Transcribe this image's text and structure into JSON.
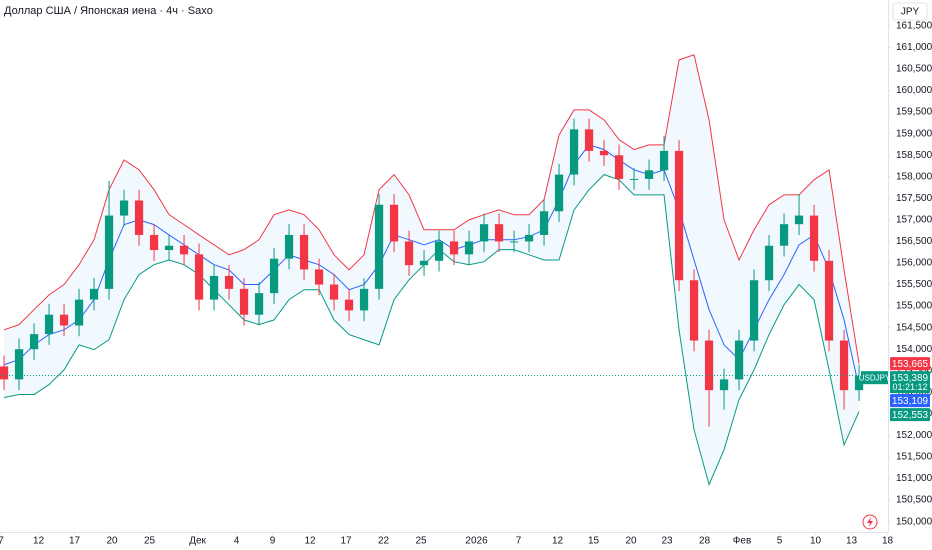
{
  "chart_data": {
    "type": "candlestick",
    "title": "Доллар США / Японская иена · 4ч · Saxo",
    "currency": "JPY",
    "up_color": "#089981",
    "down_color": "#f23645",
    "open": [
      153.6,
      153.3,
      154.0,
      154.35,
      154.8,
      154.55,
      155.15,
      155.4,
      157.1,
      157.45,
      156.65,
      156.3,
      156.4,
      156.2,
      155.15,
      155.7,
      155.4,
      154.8,
      155.3,
      156.1,
      156.65,
      155.85,
      155.5,
      155.15,
      154.9,
      155.4,
      157.35,
      156.5,
      155.95,
      156.05,
      156.5,
      156.2,
      156.5,
      156.9,
      156.5,
      156.5,
      156.65,
      157.2,
      158.05,
      159.1,
      158.6,
      158.5,
      157.95,
      157.95,
      158.15,
      158.6,
      155.6,
      154.2,
      153.05,
      153.3,
      154.2,
      155.6,
      156.4,
      156.9,
      157.1,
      156.05,
      154.2,
      153.05
    ],
    "high": [
      153.85,
      154.25,
      154.6,
      155.05,
      155.05,
      155.4,
      155.65,
      157.9,
      157.7,
      157.7,
      156.9,
      156.65,
      156.65,
      156.45,
      155.95,
      155.95,
      155.65,
      155.55,
      156.35,
      156.9,
      156.9,
      156.1,
      155.75,
      155.4,
      155.65,
      157.6,
      157.6,
      156.75,
      156.3,
      156.75,
      156.75,
      156.75,
      157.15,
      157.15,
      156.75,
      156.9,
      157.45,
      158.3,
      159.35,
      159.35,
      158.85,
      158.75,
      158.2,
      158.4,
      158.95,
      158.85,
      155.85,
      154.45,
      153.55,
      154.45,
      155.85,
      156.65,
      157.15,
      157.6,
      157.35,
      156.3,
      154.45,
      153.64
    ],
    "low": [
      153.05,
      153.05,
      153.75,
      154.1,
      154.3,
      154.3,
      154.9,
      155.15,
      156.85,
      156.4,
      156.05,
      156.05,
      155.95,
      154.9,
      154.9,
      155.15,
      154.55,
      154.55,
      155.05,
      155.85,
      155.6,
      155.25,
      154.9,
      154.65,
      154.65,
      155.15,
      156.25,
      155.7,
      155.7,
      155.8,
      155.95,
      155.95,
      156.25,
      156.25,
      156.25,
      156.25,
      156.4,
      156.95,
      157.8,
      158.35,
      158.25,
      157.7,
      157.7,
      157.7,
      157.9,
      155.35,
      153.95,
      152.2,
      152.6,
      153.05,
      153.95,
      155.35,
      156.15,
      156.65,
      155.8,
      153.95,
      152.6,
      152.8
    ],
    "close": [
      153.3,
      154.0,
      154.35,
      154.8,
      154.55,
      155.15,
      155.4,
      157.1,
      157.45,
      156.65,
      156.3,
      156.4,
      156.2,
      155.15,
      155.7,
      155.4,
      154.8,
      155.3,
      156.1,
      156.65,
      155.85,
      155.5,
      155.15,
      154.9,
      155.4,
      157.35,
      156.5,
      155.95,
      156.05,
      156.5,
      156.2,
      156.5,
      156.9,
      156.5,
      156.5,
      156.65,
      157.2,
      158.05,
      159.1,
      158.6,
      158.5,
      157.95,
      157.95,
      158.15,
      158.6,
      155.6,
      154.2,
      153.05,
      153.3,
      154.2,
      155.6,
      156.4,
      156.9,
      157.1,
      156.05,
      154.2,
      153.05,
      153.389
    ],
    "bands": {
      "upper": {
        "color": "#f23645",
        "values": [
          154.45,
          154.57,
          154.92,
          155.26,
          155.5,
          155.96,
          156.54,
          157.7,
          158.39,
          158.16,
          157.7,
          157.12,
          156.89,
          156.65,
          156.42,
          156.19,
          156.31,
          156.54,
          157.12,
          157.23,
          157.12,
          156.77,
          156.19,
          155.84,
          156.19,
          157.7,
          158.05,
          157.58,
          156.77,
          156.77,
          156.77,
          157.0,
          157.12,
          157.23,
          157.12,
          157.12,
          157.47,
          158.97,
          159.55,
          159.55,
          159.32,
          158.86,
          158.63,
          158.74,
          158.74,
          160.71,
          160.83,
          159.32,
          157.0,
          156.07,
          156.77,
          157.35,
          157.58,
          157.58,
          157.93,
          158.16,
          155.84,
          153.665
        ]
      },
      "middle": {
        "color": "#2962ff",
        "values": [
          153.64,
          153.76,
          154.1,
          154.34,
          154.45,
          154.68,
          155.15,
          156.07,
          156.89,
          157.0,
          156.89,
          156.65,
          156.42,
          156.19,
          155.96,
          155.84,
          155.5,
          155.5,
          155.84,
          156.19,
          156.07,
          155.96,
          155.73,
          155.38,
          155.5,
          155.96,
          156.65,
          156.54,
          156.42,
          156.54,
          156.31,
          156.42,
          156.54,
          156.54,
          156.54,
          156.61,
          156.77,
          157.47,
          158.28,
          158.74,
          158.63,
          158.39,
          158.16,
          158.05,
          158.16,
          157.23,
          156.07,
          154.92,
          154.1,
          153.76,
          154.45,
          155.15,
          155.73,
          156.42,
          156.65,
          155.84,
          154.68,
          153.109
        ]
      },
      "lower": {
        "color": "#089981",
        "values": [
          152.88,
          152.95,
          152.95,
          153.18,
          153.52,
          154.1,
          153.99,
          154.22,
          155.15,
          155.73,
          155.96,
          156.07,
          155.96,
          155.73,
          155.38,
          155.03,
          154.68,
          154.57,
          154.68,
          155.15,
          155.38,
          155.38,
          154.68,
          154.34,
          154.22,
          154.1,
          155.15,
          155.61,
          155.96,
          156.31,
          156.03,
          155.96,
          156.03,
          156.31,
          156.31,
          156.19,
          156.07,
          156.07,
          157.23,
          157.7,
          158.05,
          157.93,
          157.58,
          157.58,
          157.58,
          154.45,
          152.13,
          150.86,
          151.67,
          152.83,
          153.52,
          154.34,
          155.03,
          155.5,
          155.15,
          153.52,
          151.78,
          152.553
        ]
      }
    },
    "price_tags": [
      {
        "value": 153.665,
        "label": "153,665",
        "color": "#f23645"
      },
      {
        "value": 153.389,
        "label": "153,389",
        "symbol": "USDJPY",
        "countdown": "01:21:12",
        "color": "#089981"
      },
      {
        "value": 153.109,
        "label": "153,109",
        "color": "#2962ff"
      },
      {
        "value": 152.553,
        "label": "152,553",
        "color": "#089981"
      }
    ],
    "xlim": [
      -0.27,
      58.93
    ],
    "ylim": [
      149.76,
      162.1
    ],
    "xticks": [
      {
        "value": -0.2,
        "label": "7"
      },
      {
        "value": 2.3,
        "label": "12"
      },
      {
        "value": 4.7,
        "label": "17"
      },
      {
        "value": 7.2,
        "label": "20"
      },
      {
        "value": 9.7,
        "label": "25"
      },
      {
        "value": 12.9,
        "label": "Дек"
      },
      {
        "value": 15.5,
        "label": "4"
      },
      {
        "value": 17.9,
        "label": "9"
      },
      {
        "value": 20.4,
        "label": "12"
      },
      {
        "value": 22.8,
        "label": "17"
      },
      {
        "value": 25.3,
        "label": "22"
      },
      {
        "value": 27.8,
        "label": "25"
      },
      {
        "value": 31.5,
        "label": "2026"
      },
      {
        "value": 34.3,
        "label": "7"
      },
      {
        "value": 36.9,
        "label": "12"
      },
      {
        "value": 39.3,
        "label": "15"
      },
      {
        "value": 41.8,
        "label": "20"
      },
      {
        "value": 44.2,
        "label": "23"
      },
      {
        "value": 46.7,
        "label": "28"
      },
      {
        "value": 49.2,
        "label": "Фев"
      },
      {
        "value": 51.7,
        "label": "5"
      },
      {
        "value": 54.1,
        "label": "10"
      },
      {
        "value": 56.5,
        "label": "13"
      },
      {
        "value": 58.9,
        "label": "18"
      }
    ],
    "yticks": [
      {
        "value": 150,
        "label": "150,000"
      },
      {
        "value": 150.5,
        "label": "150,500"
      },
      {
        "value": 151,
        "label": "151,000"
      },
      {
        "value": 151.5,
        "label": "151,500"
      },
      {
        "value": 152,
        "label": "152,000"
      },
      {
        "value": 152.5,
        "label": "152,500"
      },
      {
        "value": 153,
        "label": "153,000"
      },
      {
        "value": 153.5,
        "label": "153,500"
      },
      {
        "value": 154,
        "label": "154,000"
      },
      {
        "value": 154.5,
        "label": "154,500"
      },
      {
        "value": 155,
        "label": "155,000"
      },
      {
        "value": 155.5,
        "label": "155,500"
      },
      {
        "value": 156,
        "label": "156,000"
      },
      {
        "value": 156.5,
        "label": "156,500"
      },
      {
        "value": 157,
        "label": "157,000"
      },
      {
        "value": 157.5,
        "label": "157,500"
      },
      {
        "value": 158,
        "label": "158,000"
      },
      {
        "value": 158.5,
        "label": "158,500"
      },
      {
        "value": 159,
        "label": "159,000"
      },
      {
        "value": 159.5,
        "label": "159,500"
      },
      {
        "value": 160,
        "label": "160,000"
      },
      {
        "value": 160.5,
        "label": "160,500"
      },
      {
        "value": 161,
        "label": "161,000"
      },
      {
        "value": 161.5,
        "label": "161,500"
      }
    ],
    "grid": false
  }
}
